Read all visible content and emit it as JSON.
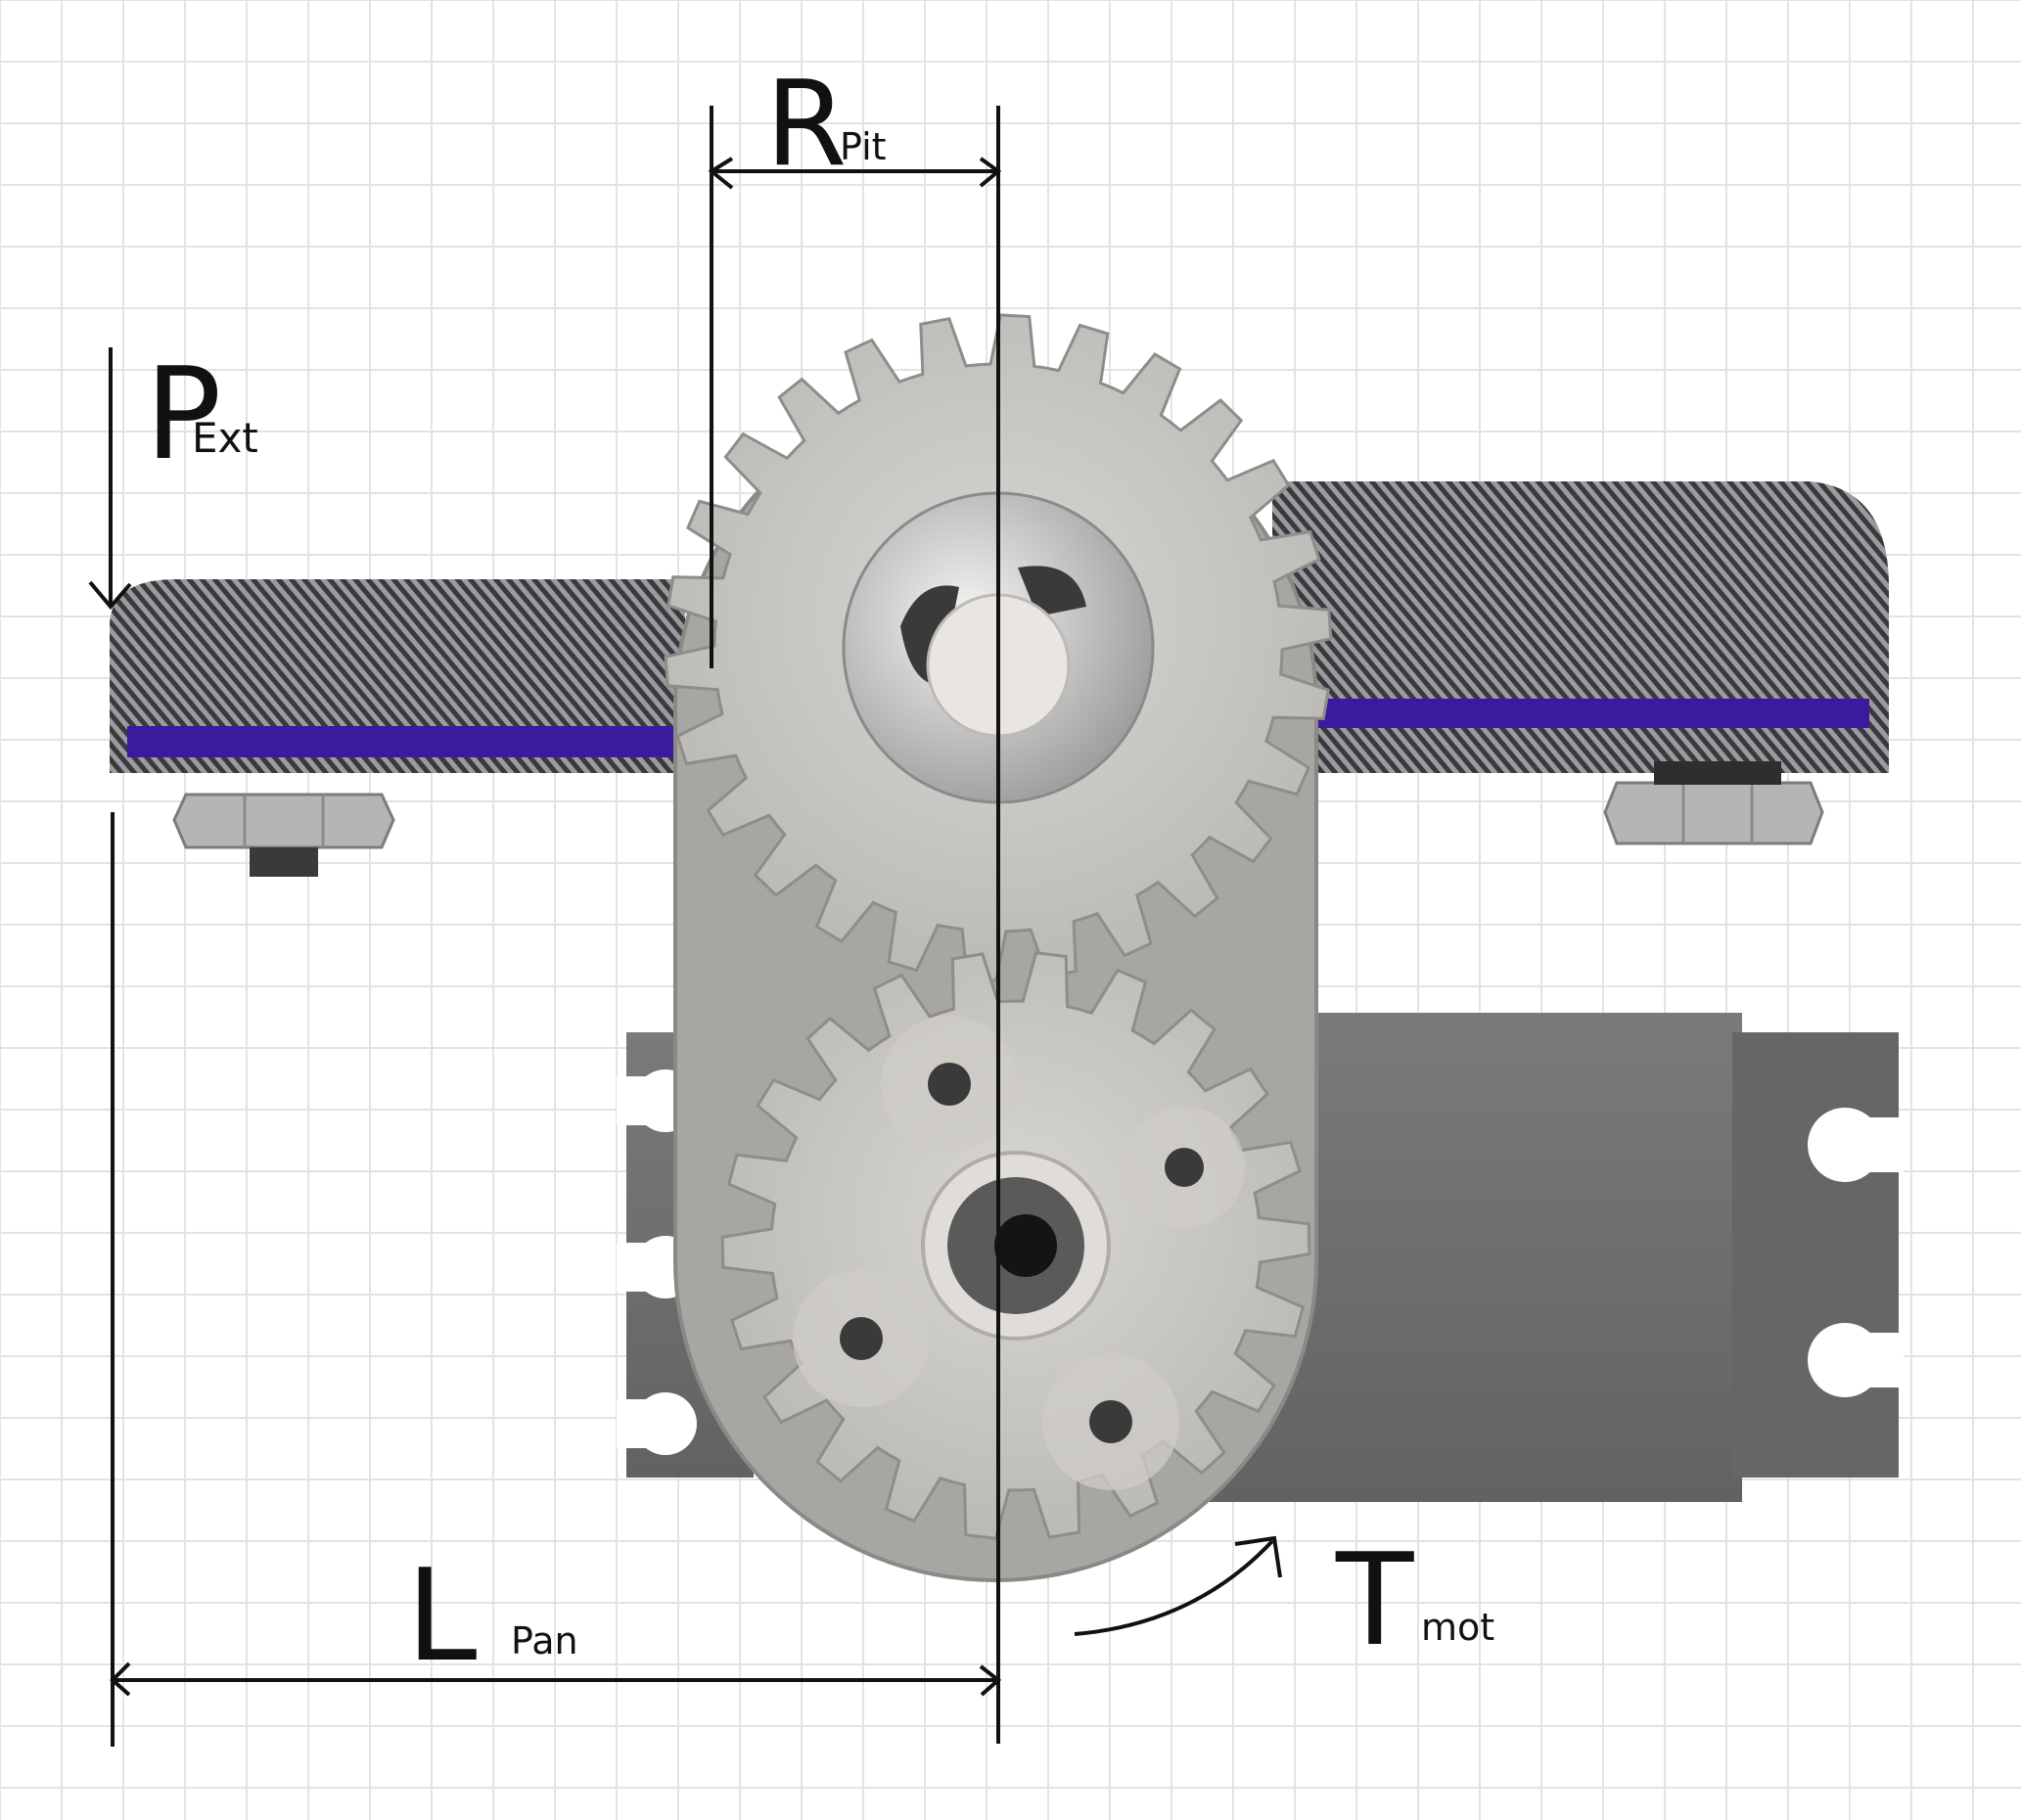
{
  "labels": {
    "p_main": "P",
    "p_sub": "Ext",
    "r_main": "R",
    "r_sub": "Pit",
    "l_main": "L",
    "l_sub": "Pan",
    "t_main": "T",
    "t_sub": "mot"
  },
  "colors": {
    "grid_line": "#e3e3e3",
    "carbon_dark": "#3a3a3c",
    "carbon_light": "#9a9aa0",
    "purple_strip": "#3a1a9e",
    "gear_fill": "#c9c7c3",
    "gear_edge": "#8f8d8a",
    "plate_fill": "#a6a4a1",
    "servo_fill": "#6f6f6f",
    "servo_dark": "#595959",
    "nut_fill": "#b7b7b7",
    "ink": "#111111"
  },
  "icons": {
    "force_arrow": "down-arrow",
    "torque_arrow": "curved-arrow",
    "dimension_arrow": "double-headed-arrow"
  }
}
